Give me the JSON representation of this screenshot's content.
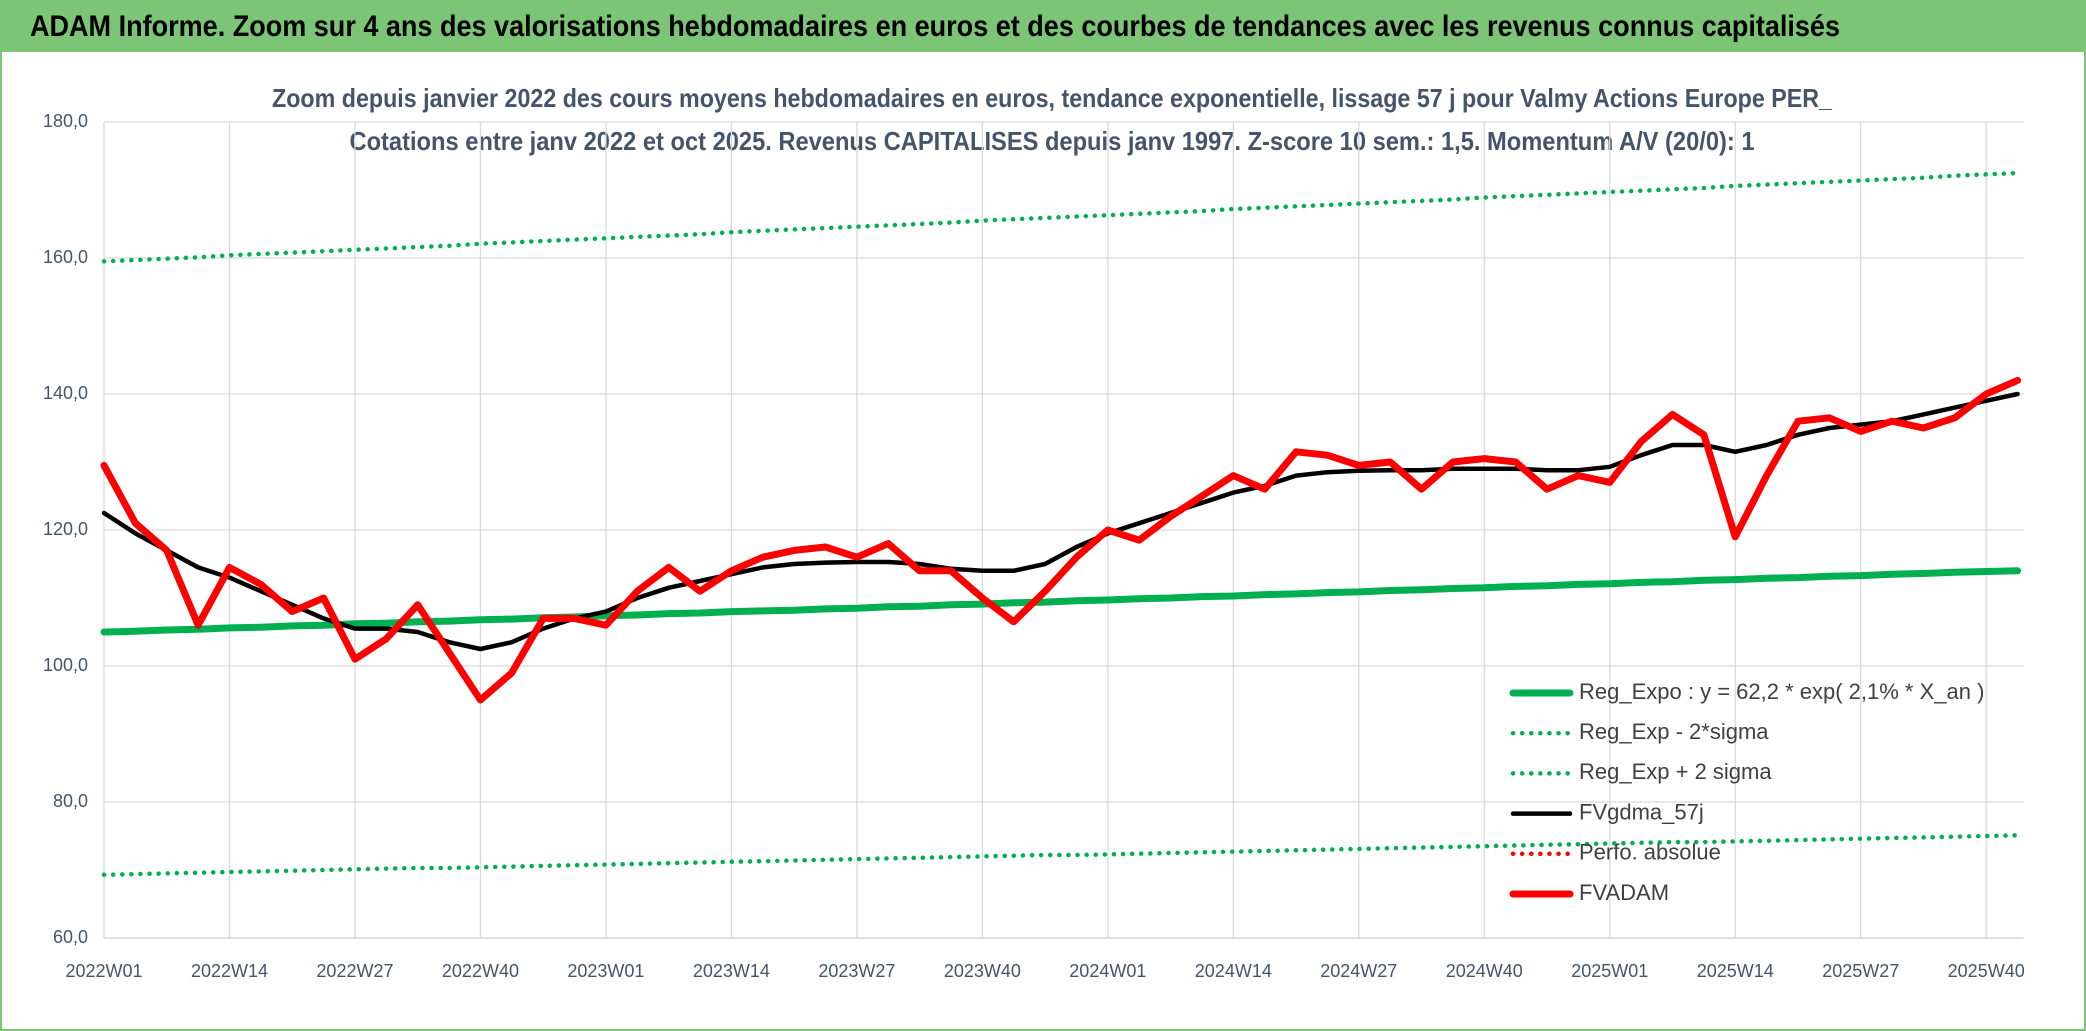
{
  "header": {
    "title": "ADAM Informe. Zoom sur 4 ans des valorisations hebdomadaires en euros et des courbes de tendances avec les revenus connus capitalisés"
  },
  "chart_data": {
    "type": "line",
    "title": "Zoom depuis janvier 2022 des cours moyens hebdomadaires en euros, tendance exponentielle, lissage 57 j pour Valmy Actions Europe PER_",
    "subtitle": "Cotations entre janv 2022 et oct 2025. Revenus CAPITALISES depuis janv 1997. Z-score 10 sem.: 1,5. Momentum A/V (20/0): 1",
    "categories": [
      "2022W01",
      null,
      null,
      null,
      "2022W14",
      null,
      null,
      null,
      "2022W27",
      null,
      null,
      null,
      "2022W40",
      null,
      null,
      null,
      "2023W01",
      null,
      null,
      null,
      "2023W14",
      null,
      null,
      null,
      "2023W27",
      null,
      null,
      null,
      "2023W40",
      null,
      null,
      null,
      "2024W01",
      null,
      null,
      null,
      "2024W14",
      null,
      null,
      null,
      "2024W27",
      null,
      null,
      null,
      "2024W40",
      null,
      null,
      null,
      "2025W01",
      null,
      null,
      null,
      "2025W14",
      null,
      null,
      null,
      "2025W27",
      null,
      null,
      null,
      "2025W40",
      null
    ],
    "ylim": [
      60,
      180
    ],
    "yticks": [
      {
        "value": 60,
        "label": "60,0"
      },
      {
        "value": 80,
        "label": "80,0"
      },
      {
        "value": 100,
        "label": "100,0"
      },
      {
        "value": 120,
        "label": "120,0"
      },
      {
        "value": 140,
        "label": "140,0"
      },
      {
        "value": 160,
        "label": "160,0"
      },
      {
        "value": 180,
        "label": "180,0"
      }
    ],
    "grid": true,
    "legend": "lower right",
    "series": [
      {
        "name": "Reg_Expo : y = 62,2 * exp( 2,1% *  X_an )",
        "color": "#00b050",
        "style": "thick",
        "values": [
          105.0,
          105.1,
          105.3,
          105.4,
          105.6,
          105.7,
          105.9,
          106.0,
          106.2,
          106.3,
          106.5,
          106.6,
          106.8,
          106.9,
          107.1,
          107.2,
          107.4,
          107.5,
          107.7,
          107.8,
          108.0,
          108.1,
          108.2,
          108.4,
          108.5,
          108.7,
          108.8,
          109.0,
          109.1,
          109.3,
          109.4,
          109.6,
          109.7,
          109.9,
          110.0,
          110.2,
          110.3,
          110.5,
          110.6,
          110.8,
          110.9,
          111.1,
          111.2,
          111.4,
          111.5,
          111.7,
          111.8,
          112.0,
          112.1,
          112.3,
          112.4,
          112.6,
          112.7,
          112.9,
          113.0,
          113.2,
          113.3,
          113.5,
          113.6,
          113.8,
          113.9,
          114.0
        ]
      },
      {
        "name": "Reg_Exp - 2*sigma",
        "color": "#00b050",
        "style": "dotted",
        "values": [
          69.3,
          69.4,
          69.5,
          69.6,
          69.7,
          69.8,
          69.9,
          70.0,
          70.1,
          70.2,
          70.3,
          70.3,
          70.4,
          70.5,
          70.6,
          70.7,
          70.8,
          70.9,
          71.0,
          71.1,
          71.2,
          71.3,
          71.4,
          71.5,
          71.6,
          71.7,
          71.8,
          71.9,
          72.0,
          72.1,
          72.2,
          72.2,
          72.3,
          72.4,
          72.5,
          72.6,
          72.7,
          72.8,
          72.9,
          73.0,
          73.1,
          73.2,
          73.3,
          73.4,
          73.5,
          73.6,
          73.7,
          73.8,
          73.9,
          74.0,
          74.1,
          74.1,
          74.2,
          74.3,
          74.4,
          74.5,
          74.6,
          74.7,
          74.8,
          74.9,
          75.0,
          75.1
        ]
      },
      {
        "name": "Reg_Exp + 2 sigma",
        "color": "#00b050",
        "style": "dotted",
        "values": [
          159.5,
          159.7,
          159.9,
          160.1,
          160.4,
          160.6,
          160.8,
          161.0,
          161.2,
          161.4,
          161.6,
          161.8,
          162.1,
          162.3,
          162.5,
          162.7,
          162.9,
          163.1,
          163.3,
          163.5,
          163.8,
          164.0,
          164.2,
          164.4,
          164.6,
          164.8,
          165.0,
          165.2,
          165.5,
          165.7,
          165.9,
          166.1,
          166.3,
          166.5,
          166.7,
          166.9,
          167.2,
          167.4,
          167.6,
          167.8,
          168.0,
          168.2,
          168.4,
          168.6,
          168.9,
          169.1,
          169.3,
          169.5,
          169.7,
          169.9,
          170.1,
          170.3,
          170.6,
          170.8,
          171.0,
          171.2,
          171.4,
          171.6,
          171.8,
          172.1,
          172.3,
          172.5
        ]
      },
      {
        "name": "FVgdma_57j",
        "color": "#000000",
        "style": "medium",
        "values": [
          122.5,
          119.5,
          117,
          114.5,
          113,
          111,
          109,
          107,
          105.5,
          105.5,
          105,
          103.5,
          102.5,
          103.5,
          105.5,
          107,
          108,
          110,
          111.5,
          112.5,
          113.5,
          114.5,
          115,
          115.2,
          115.3,
          115.3,
          115,
          114.3,
          114,
          114,
          115,
          117.5,
          119.5,
          121,
          122.5,
          124,
          125.5,
          126.5,
          128,
          128.5,
          128.7,
          128.8,
          128.8,
          129,
          129,
          129,
          128.8,
          128.8,
          129.3,
          131,
          132.5,
          132.5,
          131.5,
          132.5,
          134,
          135,
          135.5,
          136,
          137,
          138,
          139,
          140
        ]
      },
      {
        "name": "Perfo. absolue",
        "color": "#ff0000",
        "style": "dotted",
        "values": [
          null,
          null,
          null,
          null,
          null,
          null,
          null,
          null,
          null,
          null,
          null,
          null,
          null,
          null,
          null,
          null,
          null,
          null,
          null,
          null,
          null,
          null,
          null,
          null,
          null,
          null,
          null,
          null,
          null,
          null,
          null,
          null,
          null,
          null,
          null,
          null,
          null,
          null,
          null,
          null,
          null,
          null,
          null,
          null,
          null,
          null,
          null,
          null,
          null,
          null,
          null,
          null,
          null,
          null,
          null,
          null,
          null,
          null,
          null,
          null,
          null,
          null
        ]
      },
      {
        "name": "FVADAM",
        "color": "#ff0000",
        "style": "thick",
        "values": [
          129.5,
          121,
          117,
          106,
          114.5,
          112,
          108,
          110,
          101,
          104,
          109,
          102,
          95,
          99,
          107,
          107,
          106,
          111,
          114.5,
          111,
          114,
          116,
          117,
          117.5,
          116,
          118,
          114,
          114,
          110,
          106.5,
          111,
          116,
          120,
          118.5,
          122,
          125,
          128,
          126,
          131.5,
          131,
          129.5,
          130,
          126,
          130,
          130.5,
          130,
          126,
          128,
          127,
          133,
          137,
          134,
          119,
          128,
          136,
          136.5,
          134.5,
          136,
          135,
          136.5,
          140,
          142
        ]
      }
    ]
  }
}
